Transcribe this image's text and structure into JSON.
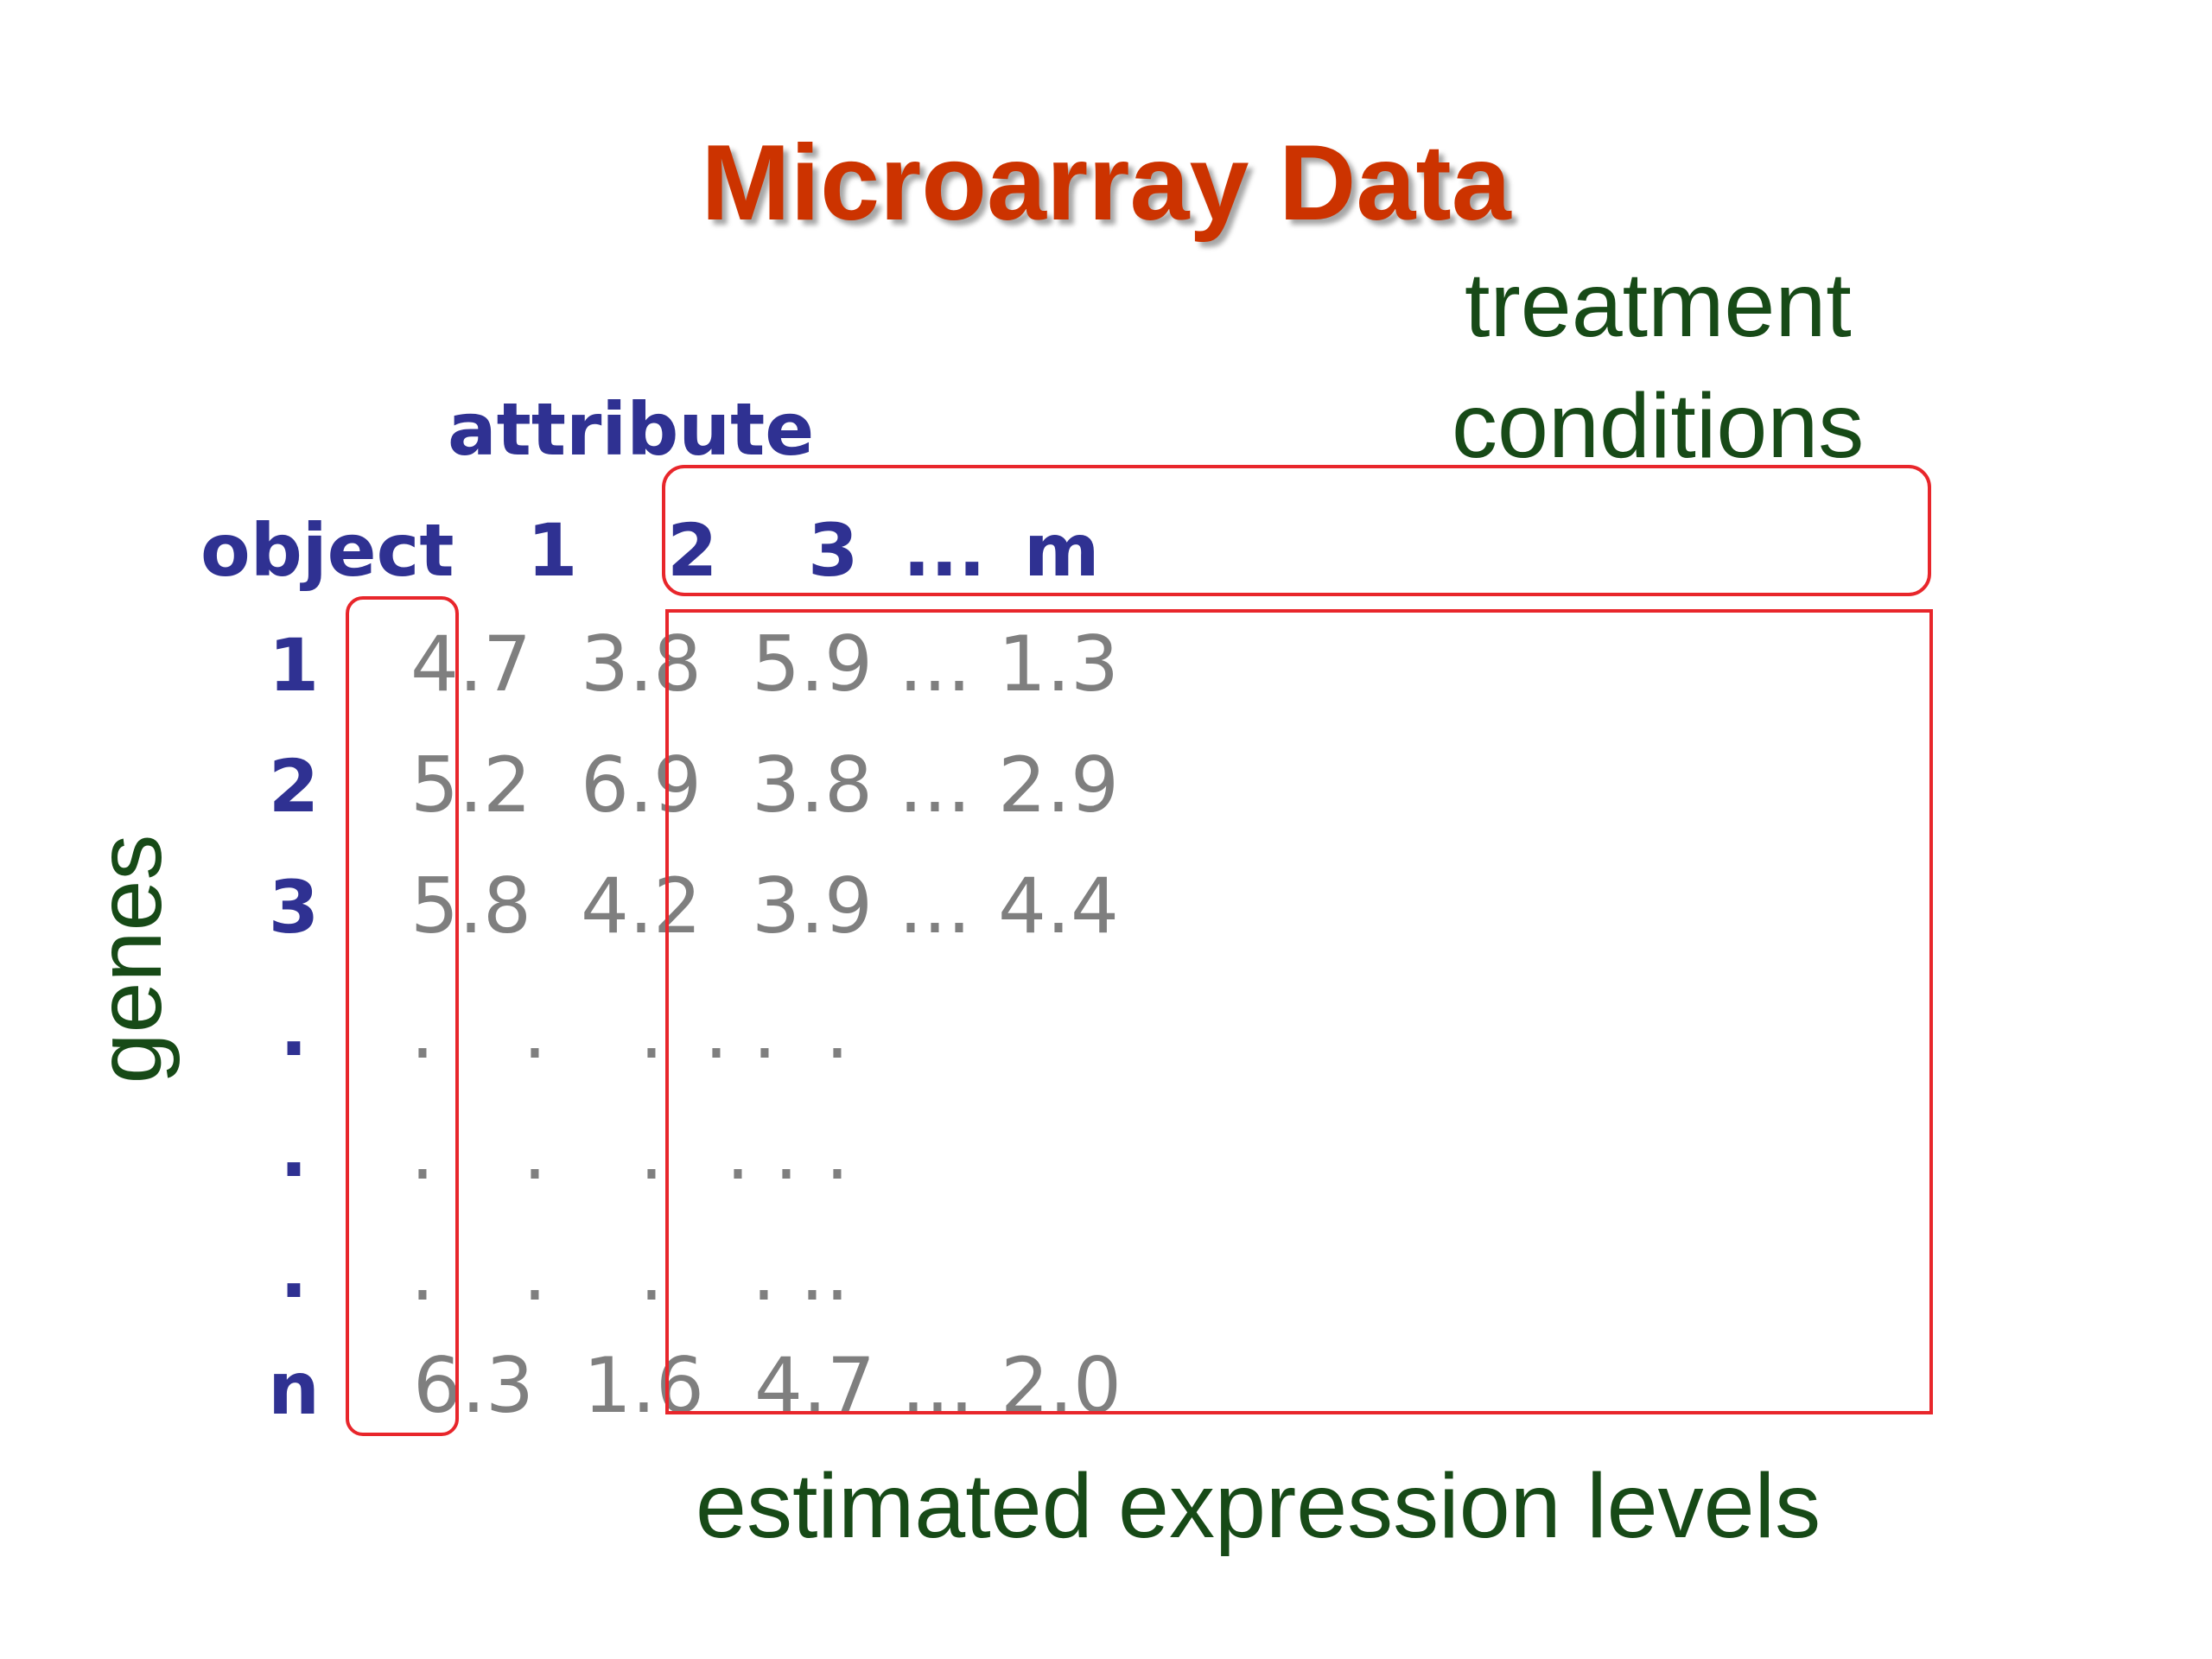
{
  "title": "Microarray Data",
  "labels": {
    "treatment_line1": "treatment",
    "treatment_line2": "conditions",
    "attribute": "attribute",
    "object": "object",
    "genes": "genes",
    "estimated": "estimated expression levels"
  },
  "columns": [
    "1",
    "2",
    "3",
    "...",
    "m"
  ],
  "rows": [
    {
      "label": "1",
      "cells": [
        "4.7",
        "3.8",
        "5.9",
        "...",
        "1.3"
      ]
    },
    {
      "label": "2",
      "cells": [
        "5.2",
        "6.9",
        "3.8",
        "...",
        "2.9"
      ]
    },
    {
      "label": "3",
      "cells": [
        "5.8",
        "4.2",
        "3.9",
        "...",
        "4.4"
      ]
    },
    {
      "label": ".",
      "cells": [
        ".",
        ".",
        ".",
        ". .",
        "."
      ]
    },
    {
      "label": ".",
      "cells": [
        ".",
        ".",
        ".",
        ". .",
        "."
      ]
    },
    {
      "label": ".",
      "cells": [
        ".",
        ".",
        ".",
        ". .",
        "."
      ]
    },
    {
      "label": "n",
      "cells": [
        "6.3",
        "1.6",
        "4.7",
        "...",
        "2.0"
      ]
    }
  ],
  "colors": {
    "title": "#cc3300",
    "label_green": "#174a17",
    "header_blue": "#2f3192",
    "value_gray": "#7f7f7f",
    "box_red": "#e8262b"
  }
}
